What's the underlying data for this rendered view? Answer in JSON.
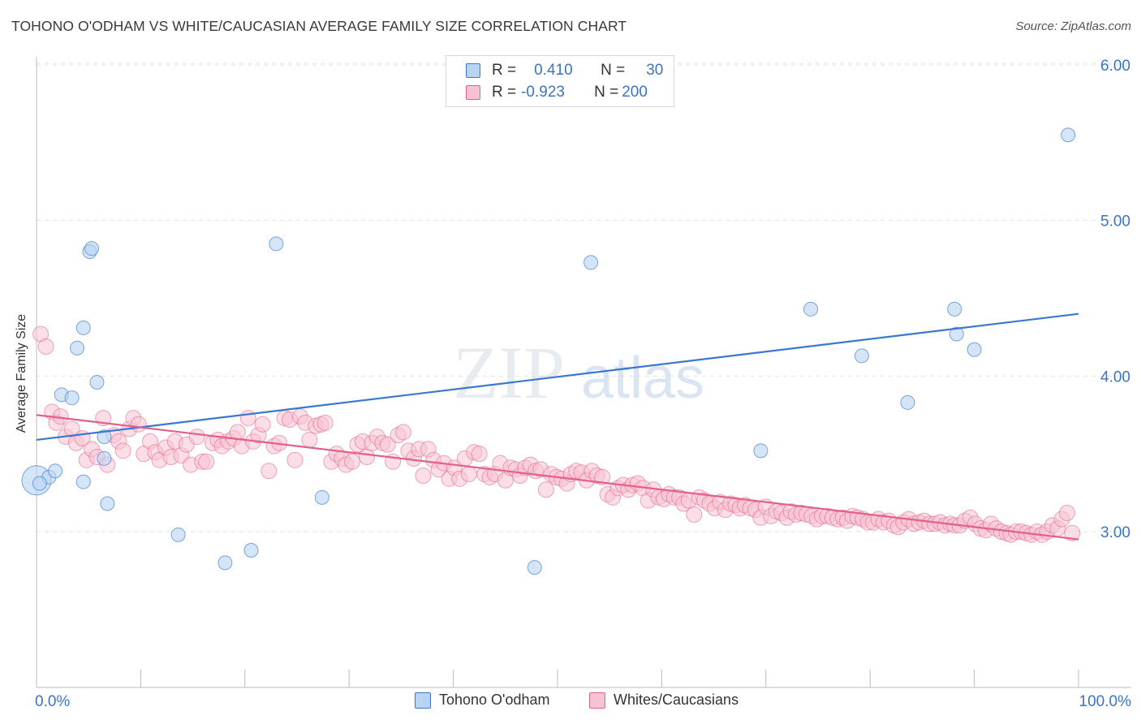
{
  "title": "TOHONO O'ODHAM VS WHITE/CAUCASIAN AVERAGE FAMILY SIZE CORRELATION CHART",
  "source": "Source: ZipAtlas.com",
  "watermark": {
    "zip": "ZIP",
    "atlas": "atlas"
  },
  "colors": {
    "blue": "#3a78d0",
    "blue_fill": "#b9d3f3",
    "pink": "#e2608b",
    "pink_fill": "#f7c2d2",
    "tick": "#3b74c4",
    "grid": "#e3e3e3"
  },
  "legend": {
    "rows": [
      {
        "r_label": "R =",
        "r_value": "0.410",
        "n_label": "N =",
        "n_value": "30"
      },
      {
        "r_label": "R =",
        "r_value": "-0.923",
        "n_label": "N =",
        "n_value": "200"
      }
    ]
  },
  "bottom_legend": [
    "Tohono O'odham",
    "Whites/Caucasians"
  ],
  "chart_data": {
    "type": "scatter",
    "title": "TOHONO O'ODHAM VS WHITE/CAUCASIAN AVERAGE FAMILY SIZE CORRELATION CHART",
    "xlabel": "",
    "ylabel": "Average Family Size",
    "xlim": [
      0,
      100
    ],
    "ylim": [
      2.0,
      6.1
    ],
    "x_tick_labels": [
      "0.0%",
      "100.0%"
    ],
    "y_ticks": [
      3.0,
      4.0,
      5.0,
      6.0
    ],
    "y_tick_labels": [
      "3.00",
      "4.00",
      "5.00",
      "6.00"
    ],
    "grid": "horizontal dashed",
    "legend_position": "top-center",
    "series": [
      {
        "name": "Tohono O'odham",
        "color": "#3a78d0",
        "r": 0.41,
        "n": 30,
        "trend": {
          "x": [
            0,
            100
          ],
          "y": [
            3.59,
            4.4
          ]
        },
        "points": [
          [
            0,
            3.33
          ],
          [
            1.2,
            3.35
          ],
          [
            1.8,
            3.39
          ],
          [
            4.5,
            3.32
          ],
          [
            2.4,
            3.88
          ],
          [
            3.4,
            3.86
          ],
          [
            4.5,
            4.31
          ],
          [
            3.9,
            4.18
          ],
          [
            5.1,
            4.8
          ],
          [
            5.3,
            4.82
          ],
          [
            5.8,
            3.96
          ],
          [
            6.5,
            3.61
          ],
          [
            6.5,
            3.47
          ],
          [
            6.8,
            3.18
          ],
          [
            13.6,
            2.98
          ],
          [
            18.1,
            2.8
          ],
          [
            20.6,
            2.88
          ],
          [
            23,
            4.85
          ],
          [
            27.4,
            3.22
          ],
          [
            47.8,
            2.77
          ],
          [
            53.2,
            4.73
          ],
          [
            69.5,
            3.52
          ],
          [
            74.3,
            4.43
          ],
          [
            79.2,
            4.13
          ],
          [
            83.6,
            3.83
          ],
          [
            88.1,
            4.43
          ],
          [
            88.3,
            4.27
          ],
          [
            90,
            4.17
          ],
          [
            99,
            5.55
          ],
          [
            0.3,
            3.31
          ]
        ]
      },
      {
        "name": "Whites/Caucasians",
        "color": "#e2608b",
        "r": -0.923,
        "n": 200,
        "trend": {
          "x": [
            0,
            100
          ],
          "y": [
            3.75,
            2.95
          ]
        },
        "points": [
          [
            0.4,
            4.27
          ],
          [
            0.9,
            4.19
          ],
          [
            1.5,
            3.77
          ],
          [
            1.9,
            3.7
          ],
          [
            2.3,
            3.74
          ],
          [
            2.8,
            3.61
          ],
          [
            3.4,
            3.66
          ],
          [
            3.8,
            3.57
          ],
          [
            4.4,
            3.6
          ],
          [
            4.8,
            3.46
          ],
          [
            5.3,
            3.53
          ],
          [
            5.8,
            3.48
          ],
          [
            6.4,
            3.73
          ],
          [
            6.8,
            3.43
          ],
          [
            7.4,
            3.62
          ],
          [
            7.9,
            3.58
          ],
          [
            8.3,
            3.52
          ],
          [
            8.9,
            3.66
          ],
          [
            9.3,
            3.73
          ],
          [
            9.8,
            3.69
          ],
          [
            10.3,
            3.5
          ],
          [
            10.9,
            3.58
          ],
          [
            11.4,
            3.51
          ],
          [
            11.8,
            3.46
          ],
          [
            12.4,
            3.54
          ],
          [
            12.9,
            3.48
          ],
          [
            13.3,
            3.58
          ],
          [
            13.9,
            3.49
          ],
          [
            14.4,
            3.56
          ],
          [
            14.8,
            3.43
          ],
          [
            15.4,
            3.61
          ],
          [
            15.9,
            3.45
          ],
          [
            16.3,
            3.45
          ],
          [
            16.9,
            3.57
          ],
          [
            17.4,
            3.59
          ],
          [
            17.8,
            3.55
          ],
          [
            18.4,
            3.58
          ],
          [
            18.9,
            3.6
          ],
          [
            19.3,
            3.64
          ],
          [
            19.7,
            3.55
          ],
          [
            20.3,
            3.73
          ],
          [
            20.8,
            3.58
          ],
          [
            21.3,
            3.62
          ],
          [
            21.7,
            3.69
          ],
          [
            22.3,
            3.39
          ],
          [
            22.8,
            3.55
          ],
          [
            23.3,
            3.57
          ],
          [
            23.8,
            3.73
          ],
          [
            24.3,
            3.72
          ],
          [
            24.8,
            3.46
          ],
          [
            25.3,
            3.74
          ],
          [
            25.8,
            3.7
          ],
          [
            26.2,
            3.59
          ],
          [
            26.8,
            3.68
          ],
          [
            27.3,
            3.69
          ],
          [
            27.7,
            3.7
          ],
          [
            28.3,
            3.45
          ],
          [
            28.8,
            3.5
          ],
          [
            29.3,
            3.47
          ],
          [
            29.7,
            3.43
          ],
          [
            30.3,
            3.45
          ],
          [
            30.8,
            3.56
          ],
          [
            31.3,
            3.58
          ],
          [
            31.7,
            3.48
          ],
          [
            32.2,
            3.57
          ],
          [
            32.7,
            3.61
          ],
          [
            33.2,
            3.57
          ],
          [
            33.7,
            3.56
          ],
          [
            34.2,
            3.45
          ],
          [
            34.7,
            3.62
          ],
          [
            35.2,
            3.64
          ],
          [
            35.7,
            3.52
          ],
          [
            36.2,
            3.47
          ],
          [
            36.7,
            3.53
          ],
          [
            37.1,
            3.36
          ],
          [
            37.6,
            3.53
          ],
          [
            38.1,
            3.46
          ],
          [
            38.6,
            3.4
          ],
          [
            39.1,
            3.44
          ],
          [
            39.6,
            3.34
          ],
          [
            40.1,
            3.41
          ],
          [
            40.6,
            3.34
          ],
          [
            41.1,
            3.47
          ],
          [
            41.5,
            3.37
          ],
          [
            42,
            3.51
          ],
          [
            42.5,
            3.5
          ],
          [
            43,
            3.37
          ],
          [
            43.5,
            3.35
          ],
          [
            44,
            3.37
          ],
          [
            44.5,
            3.44
          ],
          [
            45,
            3.33
          ],
          [
            45.5,
            3.41
          ],
          [
            46,
            3.4
          ],
          [
            46.4,
            3.36
          ],
          [
            46.9,
            3.41
          ],
          [
            47.4,
            3.43
          ],
          [
            47.9,
            3.39
          ],
          [
            48.4,
            3.4
          ],
          [
            48.9,
            3.27
          ],
          [
            49.4,
            3.37
          ],
          [
            49.9,
            3.35
          ],
          [
            50.4,
            3.34
          ],
          [
            50.9,
            3.31
          ],
          [
            51.3,
            3.37
          ],
          [
            51.8,
            3.39
          ],
          [
            52.3,
            3.38
          ],
          [
            52.8,
            3.33
          ],
          [
            53.3,
            3.39
          ],
          [
            53.8,
            3.36
          ],
          [
            54.3,
            3.35
          ],
          [
            54.8,
            3.24
          ],
          [
            55.3,
            3.22
          ],
          [
            55.8,
            3.28
          ],
          [
            56.3,
            3.3
          ],
          [
            56.8,
            3.27
          ],
          [
            57.2,
            3.3
          ],
          [
            57.7,
            3.31
          ],
          [
            58.2,
            3.28
          ],
          [
            58.7,
            3.2
          ],
          [
            59.2,
            3.27
          ],
          [
            59.7,
            3.22
          ],
          [
            60.2,
            3.21
          ],
          [
            60.7,
            3.24
          ],
          [
            61.2,
            3.22
          ],
          [
            61.7,
            3.22
          ],
          [
            62.1,
            3.18
          ],
          [
            62.6,
            3.2
          ],
          [
            63.1,
            3.11
          ],
          [
            63.6,
            3.22
          ],
          [
            64.1,
            3.2
          ],
          [
            64.6,
            3.18
          ],
          [
            65.1,
            3.15
          ],
          [
            65.6,
            3.19
          ],
          [
            66.1,
            3.14
          ],
          [
            66.6,
            3.18
          ],
          [
            67.1,
            3.17
          ],
          [
            67.5,
            3.15
          ],
          [
            68,
            3.17
          ],
          [
            68.5,
            3.15
          ],
          [
            69,
            3.14
          ],
          [
            69.5,
            3.09
          ],
          [
            70,
            3.16
          ],
          [
            70.5,
            3.1
          ],
          [
            71,
            3.13
          ],
          [
            71.5,
            3.12
          ],
          [
            72,
            3.09
          ],
          [
            72.4,
            3.13
          ],
          [
            72.9,
            3.11
          ],
          [
            73.4,
            3.12
          ],
          [
            73.9,
            3.11
          ],
          [
            74.4,
            3.1
          ],
          [
            74.9,
            3.08
          ],
          [
            75.4,
            3.1
          ],
          [
            75.9,
            3.1
          ],
          [
            76.4,
            3.09
          ],
          [
            76.9,
            3.08
          ],
          [
            77.4,
            3.09
          ],
          [
            77.8,
            3.07
          ],
          [
            78.3,
            3.1
          ],
          [
            78.8,
            3.09
          ],
          [
            79.3,
            3.08
          ],
          [
            79.8,
            3.06
          ],
          [
            80.3,
            3.06
          ],
          [
            80.8,
            3.08
          ],
          [
            81.3,
            3.06
          ],
          [
            81.8,
            3.07
          ],
          [
            82.3,
            3.04
          ],
          [
            82.7,
            3.03
          ],
          [
            83.2,
            3.06
          ],
          [
            83.7,
            3.08
          ],
          [
            84.2,
            3.05
          ],
          [
            84.7,
            3.06
          ],
          [
            85.2,
            3.07
          ],
          [
            85.7,
            3.05
          ],
          [
            86.2,
            3.05
          ],
          [
            86.7,
            3.06
          ],
          [
            87.2,
            3.04
          ],
          [
            87.7,
            3.05
          ],
          [
            88.1,
            3.04
          ],
          [
            88.6,
            3.04
          ],
          [
            89.1,
            3.07
          ],
          [
            89.6,
            3.09
          ],
          [
            90.1,
            3.05
          ],
          [
            90.6,
            3.02
          ],
          [
            91.1,
            3.01
          ],
          [
            91.6,
            3.05
          ],
          [
            92.1,
            3.02
          ],
          [
            92.6,
            3.0
          ],
          [
            93.1,
            2.99
          ],
          [
            93.5,
            2.98
          ],
          [
            94,
            3.0
          ],
          [
            94.5,
            3.0
          ],
          [
            95,
            2.99
          ],
          [
            95.5,
            2.98
          ],
          [
            96,
            3.0
          ],
          [
            96.5,
            2.98
          ],
          [
            97,
            3.0
          ],
          [
            97.5,
            3.04
          ],
          [
            98,
            3.02
          ],
          [
            98.4,
            3.08
          ],
          [
            98.9,
            3.12
          ],
          [
            99.4,
            2.99
          ]
        ]
      }
    ]
  }
}
